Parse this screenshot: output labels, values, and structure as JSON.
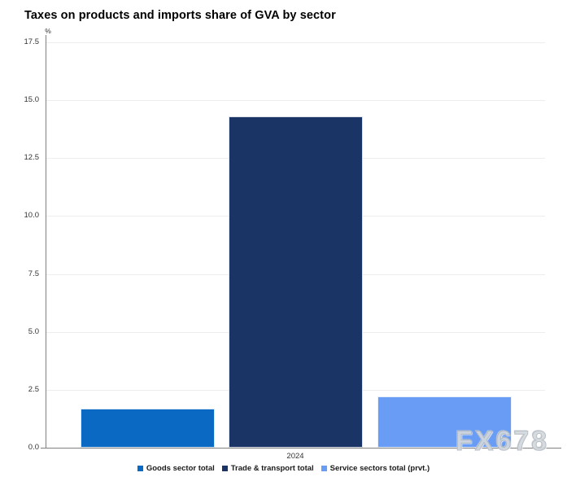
{
  "title": "Taxes on products and imports share of GVA by sector",
  "watermark": "FX678",
  "chart_data": {
    "type": "bar",
    "title": "Taxes on products and imports share of GVA by sector",
    "categories": [
      "2024"
    ],
    "series": [
      {
        "name": "Goods sector total",
        "color": "#0a69c3",
        "values": [
          1.7
        ]
      },
      {
        "name": "Trade & transport total",
        "color": "#1a3466",
        "values": [
          14.3
        ]
      },
      {
        "name": "Service sectors total (prvt.)",
        "color": "#699df5",
        "values": [
          2.2
        ]
      }
    ],
    "xlabel": "",
    "ylabel": "%",
    "ylim": [
      0,
      17.5
    ],
    "yticks": [
      0,
      2.5,
      5,
      7.5,
      10,
      12.5,
      15,
      17.5
    ],
    "ytick_labels": [
      "0.0",
      "2.5",
      "5.0",
      "7.5",
      "10.0",
      "12.5",
      "15.0",
      "17.5"
    ],
    "grid": true,
    "legend_position": "bottom",
    "colors": {
      "grid": "#ededed",
      "axis": "#808080",
      "tick_text": "#333333",
      "title_text": "#000000",
      "watermark_text": "#d3d8dd"
    }
  }
}
